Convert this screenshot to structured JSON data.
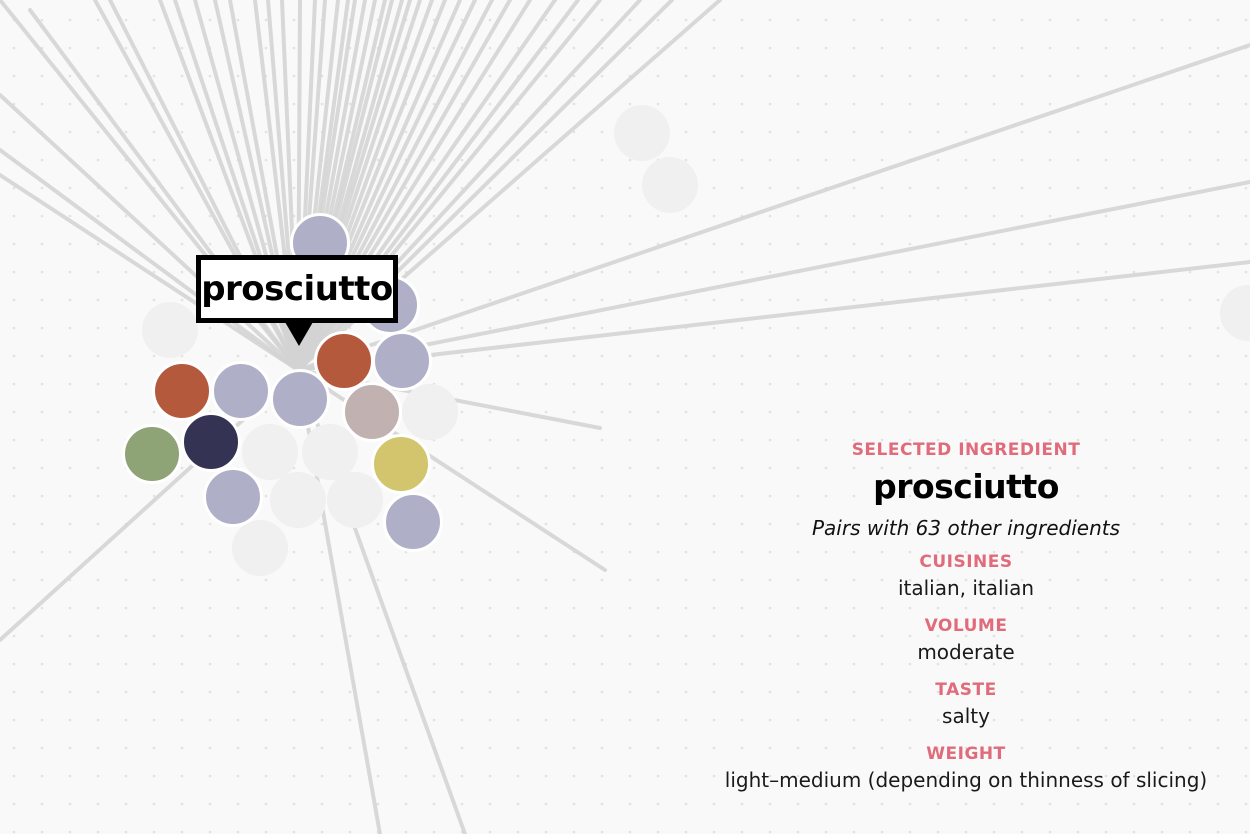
{
  "tooltip": {
    "text": "prosciutto"
  },
  "info": {
    "selected_label": "SELECTED INGREDIENT",
    "name": "prosciutto",
    "pairs_text": "Pairs with 63 other ingredients",
    "cuisines_label": "CUISINES",
    "cuisines": "italian, italian",
    "volume_label": "VOLUME",
    "volume": "moderate",
    "taste_label": "TASTE",
    "taste": "salty",
    "weight_label": "WEIGHT",
    "weight": "light–medium (depending on thinness of slicing)"
  },
  "colors": {
    "background": "#f9f9f9",
    "link_line": "#d3d3d3",
    "accent_label": "#e06b7a",
    "node_lavender": "#b0afc8",
    "node_rust": "#b5593d",
    "node_navy": "#353353",
    "node_olive": "#8fa476",
    "node_mauve": "#c1b1b1",
    "node_mustard": "#d2c56e",
    "node_faded": "#f0f0f1"
  }
}
